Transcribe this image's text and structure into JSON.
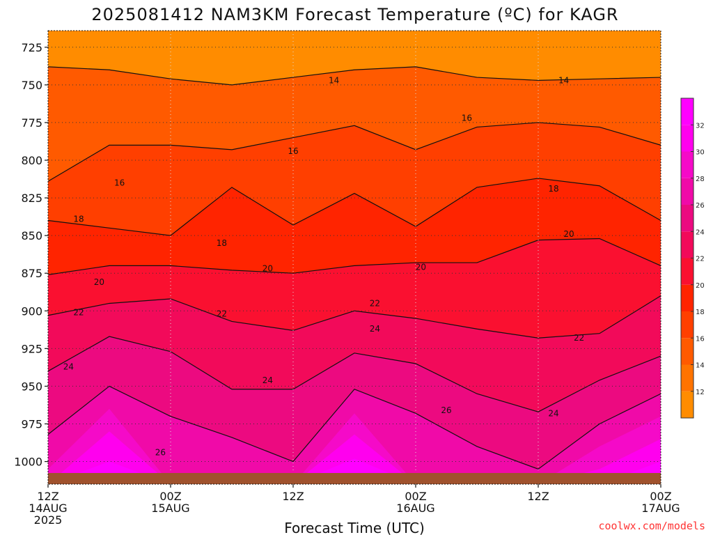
{
  "chart_data": {
    "type": "heatmap",
    "title": "2025081412 NAM3KM Forecast Temperature (ºC) for KAGR",
    "xlabel": "Forecast Time (UTC)",
    "ylabel": "",
    "credit": "coolwx.com/models",
    "y_axis": {
      "unit": "hPa",
      "reversed": true,
      "range": [
        1015,
        714
      ],
      "ticks": [
        725,
        750,
        775,
        800,
        825,
        850,
        875,
        900,
        925,
        950,
        975,
        1000
      ],
      "tick_labels": [
        "725",
        "750",
        "775",
        "800",
        "825",
        "850",
        "875",
        "900",
        "925",
        "950",
        "975",
        "1000"
      ]
    },
    "x_axis": {
      "unit": "forecast hour",
      "range": [
        0,
        60
      ],
      "ticks": [
        0,
        12,
        24,
        36,
        48,
        60
      ],
      "tick_labels": [
        [
          "12Z",
          "14AUG",
          "2025"
        ],
        [
          "00Z",
          "15AUG"
        ],
        [
          "12Z"
        ],
        [
          "00Z",
          "16AUG"
        ],
        [
          "12Z"
        ],
        [
          "00Z",
          "17AUG"
        ]
      ]
    },
    "grid": true,
    "colorbar": {
      "position": "right",
      "levels": [
        10,
        12,
        14,
        16,
        18,
        20,
        22,
        24,
        26,
        28,
        30,
        32,
        34
      ],
      "tick_labels": [
        "12",
        "14",
        "16",
        "18",
        "20",
        "22",
        "24",
        "26",
        "28",
        "30",
        "32"
      ],
      "colors": [
        "#ff8c00",
        "#ff7300",
        "#ff5a00",
        "#ff3f00",
        "#ff2400",
        "#fa1030",
        "#f20a5a",
        "#ec0a80",
        "#f00aa8",
        "#f50ac8",
        "#ff00ee",
        "#ff00ff"
      ]
    },
    "contour_levels": [
      14,
      16,
      18,
      20,
      22,
      24,
      26
    ],
    "isotherm_pressure": [
      {
        "temp": 14,
        "hours": [
          0,
          6,
          12,
          18,
          24,
          30,
          36,
          42,
          48,
          54,
          60
        ],
        "pressure": [
          738,
          740,
          746,
          750,
          745,
          740,
          738,
          745,
          747,
          746,
          745
        ]
      },
      {
        "temp": 16,
        "hours": [
          0,
          6,
          12,
          18,
          24,
          30,
          36,
          42,
          48,
          54,
          60
        ],
        "pressure": [
          814,
          790,
          790,
          793,
          785,
          777,
          793,
          778,
          775,
          778,
          790
        ]
      },
      {
        "temp": 18,
        "hours": [
          0,
          6,
          12,
          18,
          24,
          30,
          36,
          42,
          48,
          54,
          60
        ],
        "pressure": [
          840,
          845,
          850,
          818,
          843,
          822,
          844,
          818,
          812,
          817,
          840
        ]
      },
      {
        "temp": 20,
        "hours": [
          0,
          6,
          12,
          18,
          24,
          30,
          36,
          42,
          48,
          54,
          60
        ],
        "pressure": [
          876,
          870,
          870,
          873,
          875,
          870,
          868,
          868,
          853,
          852,
          870
        ]
      },
      {
        "temp": 22,
        "hours": [
          0,
          6,
          12,
          18,
          24,
          30,
          36,
          42,
          48,
          54,
          60
        ],
        "pressure": [
          903,
          895,
          892,
          907,
          913,
          900,
          905,
          912,
          918,
          915,
          890
        ]
      },
      {
        "temp": 24,
        "hours": [
          0,
          6,
          12,
          18,
          24,
          30,
          36,
          42,
          48,
          54,
          60
        ],
        "pressure": [
          940,
          917,
          927,
          952,
          952,
          928,
          935,
          955,
          967,
          946,
          930
        ]
      },
      {
        "temp": 26,
        "hours": [
          0,
          6,
          12,
          18,
          24,
          30,
          36,
          42,
          48,
          54,
          60
        ],
        "pressure": [
          982,
          950,
          970,
          984,
          1000,
          952,
          968,
          990,
          1005,
          975,
          955
        ]
      },
      {
        "temp": 28,
        "hours": [
          0,
          6,
          12,
          18,
          24,
          30,
          36,
          42,
          48,
          54,
          60
        ],
        "pressure": [
          1005,
          965,
          1015,
          1015,
          1015,
          968,
          1015,
          1015,
          1015,
          990,
          970
        ]
      },
      {
        "temp": 30,
        "hours": [
          0,
          6,
          12,
          18,
          24,
          30,
          36,
          42,
          48,
          54,
          60
        ],
        "pressure": [
          1015,
          980,
          1015,
          1015,
          1015,
          982,
          1015,
          1015,
          1015,
          1005,
          985
        ]
      },
      {
        "temp": 32,
        "hours": [
          0,
          6,
          12,
          18,
          24,
          30,
          36,
          42,
          48,
          54,
          60
        ],
        "pressure": [
          1015,
          1000,
          1015,
          1015,
          1015,
          998,
          1015,
          1015,
          1015,
          1015,
          1000
        ]
      }
    ],
    "contour_labels": [
      {
        "text": "14",
        "hour": 28,
        "pressure": 747
      },
      {
        "text": "14",
        "hour": 50.5,
        "pressure": 747
      },
      {
        "text": "16",
        "hour": 41,
        "pressure": 772
      },
      {
        "text": "16",
        "hour": 24,
        "pressure": 794
      },
      {
        "text": "16",
        "hour": 7,
        "pressure": 815
      },
      {
        "text": "18",
        "hour": 49.5,
        "pressure": 819
      },
      {
        "text": "18",
        "hour": 3,
        "pressure": 839
      },
      {
        "text": "18",
        "hour": 17,
        "pressure": 855
      },
      {
        "text": "20",
        "hour": 51,
        "pressure": 849
      },
      {
        "text": "20",
        "hour": 21.5,
        "pressure": 872
      },
      {
        "text": "20",
        "hour": 36.5,
        "pressure": 871
      },
      {
        "text": "20",
        "hour": 5,
        "pressure": 881
      },
      {
        "text": "22",
        "hour": 32,
        "pressure": 895
      },
      {
        "text": "22",
        "hour": 3,
        "pressure": 901
      },
      {
        "text": "22",
        "hour": 17,
        "pressure": 902
      },
      {
        "text": "22",
        "hour": 52,
        "pressure": 918
      },
      {
        "text": "24",
        "hour": 32,
        "pressure": 912
      },
      {
        "text": "24",
        "hour": 2,
        "pressure": 937
      },
      {
        "text": "24",
        "hour": 21.5,
        "pressure": 946
      },
      {
        "text": "24",
        "hour": 49.5,
        "pressure": 968
      },
      {
        "text": "26",
        "hour": 39,
        "pressure": 966
      },
      {
        "text": "26",
        "hour": 11,
        "pressure": 994
      }
    ],
    "terrain_surface_pressure": 1015
  }
}
